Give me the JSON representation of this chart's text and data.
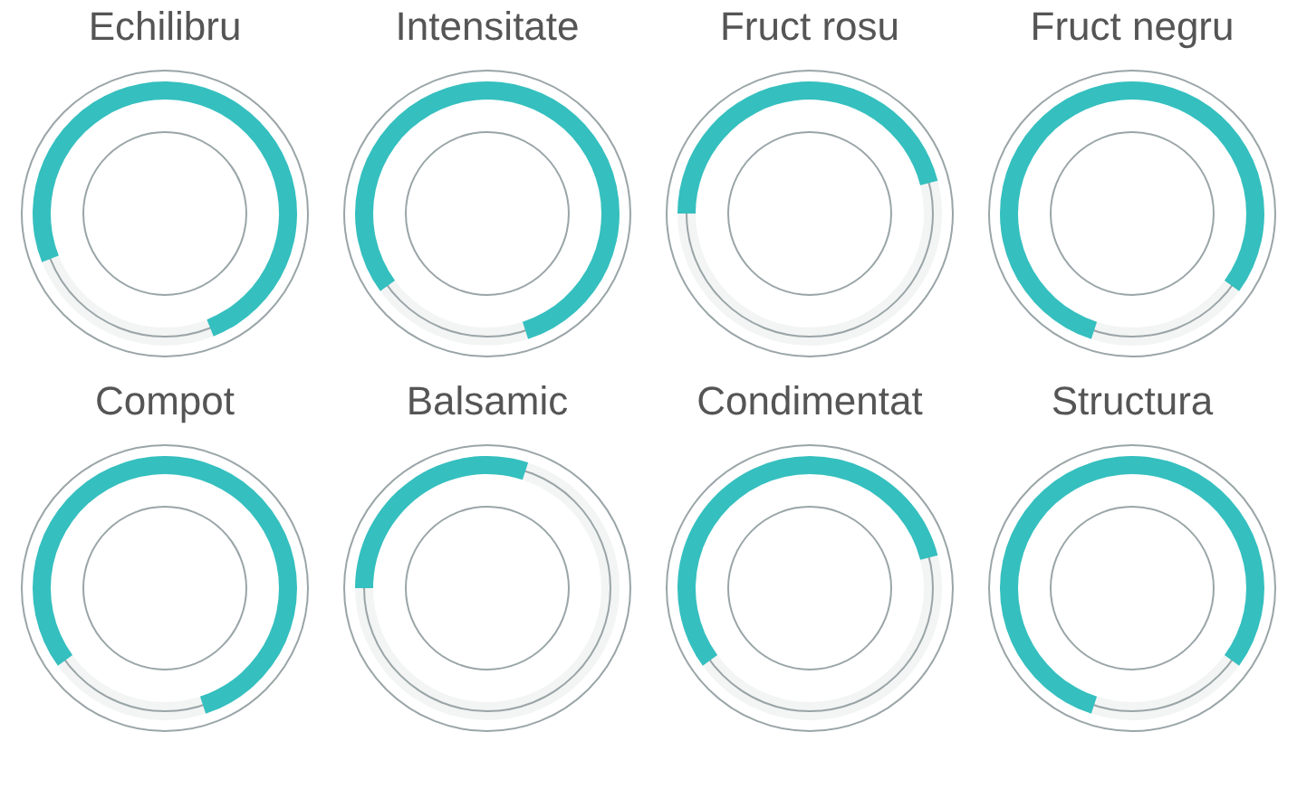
{
  "chart_data": [
    {
      "type": "donut",
      "title": "Echilibru",
      "categories": [
        null,
        null,
        null
      ],
      "values": [
        19,
        75,
        6
      ],
      "colors": [
        "#9aa5a8",
        "#35bfbf",
        "#9aa5a8"
      ]
    },
    {
      "type": "donut",
      "title": "Intensitate",
      "categories": [
        null,
        null,
        null
      ],
      "values": [
        15,
        80,
        5
      ],
      "colors": [
        "#9aa5a8",
        "#35bfbf",
        "#9aa5a8"
      ]
    },
    {
      "type": "donut",
      "title": "Fruct rosu",
      "categories": [
        null,
        null,
        null
      ],
      "values": [
        25,
        46,
        29
      ],
      "colors": [
        "#9aa5a8",
        "#35bfbf",
        "#9aa5a8"
      ]
    },
    {
      "type": "donut",
      "title": "Fruct negru",
      "categories": [
        null,
        null,
        null
      ],
      "values": [
        5,
        80,
        15
      ],
      "colors": [
        "#9aa5a8",
        "#35bfbf",
        "#9aa5a8"
      ]
    },
    {
      "type": "donut",
      "title": "Compot",
      "categories": [
        null,
        null,
        null
      ],
      "values": [
        15,
        80,
        5
      ],
      "colors": [
        "#9aa5a8",
        "#35bfbf",
        "#9aa5a8"
      ]
    },
    {
      "type": "donut",
      "title": "Balsamic",
      "categories": [
        null,
        null,
        null
      ],
      "values": [
        25,
        30,
        45
      ],
      "colors": [
        "#9aa5a8",
        "#35bfbf",
        "#9aa5a8"
      ]
    },
    {
      "type": "donut",
      "title": "Condimentat",
      "categories": [
        null,
        null,
        null
      ],
      "values": [
        15,
        56,
        29
      ],
      "colors": [
        "#9aa5a8",
        "#35bfbf",
        "#9aa5a8"
      ]
    },
    {
      "type": "donut",
      "title": "Structura",
      "categories": [
        null,
        null,
        null
      ],
      "values": [
        5,
        80,
        15
      ],
      "colors": [
        "#9aa5a8",
        "#35bfbf",
        "#9aa5a8"
      ]
    }
  ]
}
